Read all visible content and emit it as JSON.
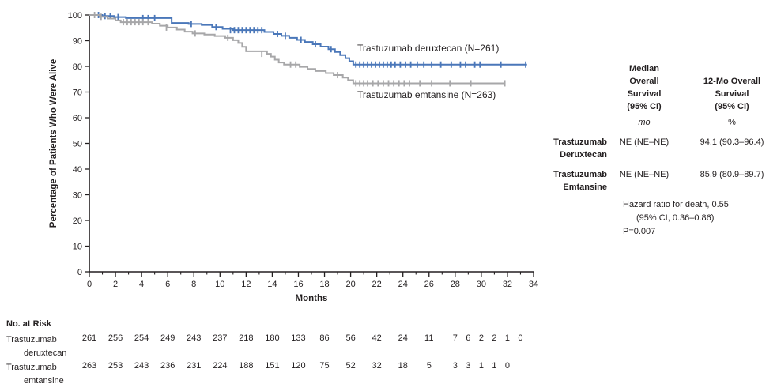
{
  "colors": {
    "deruxtecan_blue": "#4a77b9",
    "emtansine_gray": "#a7a7a9",
    "axis": "#231f20",
    "text": "#231f20",
    "background": "#ffffff"
  },
  "chart_data": {
    "type": "line",
    "subtype": "kaplan-meier-step",
    "title": "",
    "xlabel": "Months",
    "ylabel": "Percentage of Patients Who Were Alive",
    "xlim": [
      0,
      34
    ],
    "ylim": [
      0,
      100
    ],
    "x_major_ticks": [
      0,
      2,
      4,
      6,
      8,
      10,
      12,
      14,
      16,
      18,
      20,
      22,
      24,
      26,
      28,
      30,
      32,
      34
    ],
    "x_minor_ticks": [
      1,
      3,
      5,
      7,
      9,
      11,
      13,
      15,
      17,
      19,
      21,
      23,
      25,
      27,
      29,
      31,
      33
    ],
    "y_ticks": [
      0,
      10,
      20,
      30,
      40,
      50,
      60,
      70,
      80,
      90,
      100
    ],
    "grid": false,
    "legend_position": "inline-annotations",
    "series": [
      {
        "name": "Trastuzumab deruxtecan",
        "n": 261,
        "annotation": "Trastuzumab deruxtecan (N=261)",
        "color": "#4a77b9",
        "end_month": 33.5,
        "steps": [
          [
            0,
            100
          ],
          [
            1.0,
            99.6
          ],
          [
            1.9,
            99.2
          ],
          [
            2.8,
            98.8
          ],
          [
            6.3,
            96.9
          ],
          [
            7.6,
            96.5
          ],
          [
            8.6,
            96.1
          ],
          [
            9.4,
            95.3
          ],
          [
            10.2,
            94.6
          ],
          [
            11.0,
            94.1
          ],
          [
            13.4,
            93.4
          ],
          [
            14.1,
            92.6
          ],
          [
            14.7,
            91.9
          ],
          [
            15.3,
            91.1
          ],
          [
            15.9,
            90.3
          ],
          [
            16.5,
            89.5
          ],
          [
            17.1,
            88.6
          ],
          [
            17.7,
            87.7
          ],
          [
            18.3,
            86.7
          ],
          [
            18.8,
            85.6
          ],
          [
            19.2,
            84.4
          ],
          [
            19.6,
            83.2
          ],
          [
            19.9,
            82.0
          ],
          [
            20.2,
            80.7
          ]
        ],
        "censors": [
          [
            0.7,
            100
          ],
          [
            1.2,
            99.6
          ],
          [
            1.6,
            99.6
          ],
          [
            2.2,
            99.2
          ],
          [
            4.1,
            98.8
          ],
          [
            4.5,
            98.8
          ],
          [
            5.0,
            98.8
          ],
          [
            7.8,
            96.5
          ],
          [
            9.7,
            95.3
          ],
          [
            10.8,
            94.1
          ],
          [
            11.1,
            94.1
          ],
          [
            11.4,
            94.1
          ],
          [
            11.7,
            94.1
          ],
          [
            12.0,
            94.1
          ],
          [
            12.3,
            94.1
          ],
          [
            12.6,
            94.1
          ],
          [
            12.9,
            94.1
          ],
          [
            13.2,
            94.1
          ],
          [
            14.4,
            92.6
          ],
          [
            15.0,
            91.9
          ],
          [
            16.2,
            90.3
          ],
          [
            17.3,
            88.6
          ],
          [
            18.5,
            86.7
          ],
          [
            20.4,
            80.7
          ],
          [
            20.7,
            80.7
          ],
          [
            21.0,
            80.7
          ],
          [
            21.3,
            80.7
          ],
          [
            21.6,
            80.7
          ],
          [
            21.9,
            80.7
          ],
          [
            22.2,
            80.7
          ],
          [
            22.5,
            80.7
          ],
          [
            22.8,
            80.7
          ],
          [
            23.1,
            80.7
          ],
          [
            23.4,
            80.7
          ],
          [
            23.8,
            80.7
          ],
          [
            24.2,
            80.7
          ],
          [
            24.6,
            80.7
          ],
          [
            25.1,
            80.7
          ],
          [
            25.6,
            80.7
          ],
          [
            26.2,
            80.7
          ],
          [
            26.9,
            80.7
          ],
          [
            27.7,
            80.7
          ],
          [
            28.4,
            80.7
          ],
          [
            28.8,
            80.7
          ],
          [
            29.5,
            80.7
          ],
          [
            29.9,
            80.7
          ],
          [
            31.5,
            80.7
          ],
          [
            33.4,
            80.7
          ]
        ]
      },
      {
        "name": "Trastuzumab emtansine",
        "n": 263,
        "annotation": "Trastuzumab emtansine (N=263)",
        "color": "#a7a7a9",
        "end_month": 31.8,
        "steps": [
          [
            0,
            100
          ],
          [
            0.8,
            99.3
          ],
          [
            1.4,
            98.6
          ],
          [
            2.0,
            97.9
          ],
          [
            2.4,
            97.2
          ],
          [
            4.8,
            96.6
          ],
          [
            5.4,
            95.8
          ],
          [
            6.0,
            95.1
          ],
          [
            6.7,
            94.3
          ],
          [
            7.3,
            93.5
          ],
          [
            7.9,
            92.8
          ],
          [
            8.8,
            92.4
          ],
          [
            9.6,
            91.8
          ],
          [
            10.4,
            91.1
          ],
          [
            11.0,
            90.2
          ],
          [
            11.4,
            89.1
          ],
          [
            11.7,
            87.6
          ],
          [
            12.0,
            85.9
          ],
          [
            13.6,
            84.9
          ],
          [
            13.9,
            83.8
          ],
          [
            14.2,
            82.6
          ],
          [
            14.5,
            81.5
          ],
          [
            14.9,
            80.7
          ],
          [
            16.1,
            79.8
          ],
          [
            16.7,
            79.0
          ],
          [
            17.3,
            78.2
          ],
          [
            18.1,
            77.4
          ],
          [
            18.7,
            76.6
          ],
          [
            19.4,
            75.6
          ],
          [
            19.8,
            74.6
          ],
          [
            20.2,
            73.4
          ]
        ],
        "censors": [
          [
            0.4,
            100
          ],
          [
            0.9,
            99.3
          ],
          [
            2.6,
            97.2
          ],
          [
            2.9,
            97.2
          ],
          [
            3.2,
            97.2
          ],
          [
            3.5,
            97.2
          ],
          [
            3.8,
            97.2
          ],
          [
            4.1,
            97.2
          ],
          [
            4.5,
            97.2
          ],
          [
            5.9,
            95.1
          ],
          [
            8.1,
            92.8
          ],
          [
            10.6,
            91.1
          ],
          [
            13.2,
            84.9
          ],
          [
            15.4,
            80.7
          ],
          [
            15.8,
            80.7
          ],
          [
            19.0,
            76.6
          ],
          [
            20.4,
            73.4
          ],
          [
            20.7,
            73.4
          ],
          [
            21.0,
            73.4
          ],
          [
            21.3,
            73.4
          ],
          [
            21.7,
            73.4
          ],
          [
            22.1,
            73.4
          ],
          [
            22.5,
            73.4
          ],
          [
            22.9,
            73.4
          ],
          [
            23.3,
            73.4
          ],
          [
            23.7,
            73.4
          ],
          [
            24.1,
            73.4
          ],
          [
            24.5,
            73.4
          ],
          [
            25.3,
            73.4
          ],
          [
            26.2,
            73.4
          ],
          [
            27.6,
            73.4
          ],
          [
            29.2,
            73.4
          ],
          [
            31.8,
            73.4
          ]
        ]
      }
    ]
  },
  "stats_table": {
    "col1_header": "Median\nOverall\nSurvival\n(95% CI)",
    "col2_header": "12-Mo Overall\nSurvival\n(95% CI)",
    "col1_unit": "mo",
    "col2_unit": "%",
    "rows": [
      {
        "label": "Trastuzumab\nDeruxtecan",
        "median_os": "NE (NE–NE)",
        "os_12mo": "94.1 (90.3–96.4)"
      },
      {
        "label": "Trastuzumab\nEmtansine",
        "median_os": "NE (NE–NE)",
        "os_12mo": "85.9 (80.9–89.7)"
      }
    ]
  },
  "hazard": {
    "line1": "Hazard ratio for death, 0.55",
    "line2": "(95% CI, 0.36–0.86)",
    "line3": "P=0.007"
  },
  "risk_table": {
    "header": "No. at Risk",
    "rows": [
      {
        "label_line1": "Trastuzumab",
        "label_line2": "deruxtecan",
        "months": [
          0,
          2,
          4,
          6,
          8,
          10,
          12,
          14,
          16,
          18,
          20,
          22,
          24,
          26,
          28,
          29,
          30,
          31,
          32,
          33
        ],
        "values": [
          261,
          256,
          254,
          249,
          243,
          237,
          218,
          180,
          133,
          86,
          56,
          42,
          24,
          11,
          7,
          6,
          2,
          2,
          1,
          0
        ]
      },
      {
        "label_line1": "Trastuzumab",
        "label_line2": "emtansine",
        "months": [
          0,
          2,
          4,
          6,
          8,
          10,
          12,
          14,
          16,
          18,
          20,
          22,
          24,
          26,
          28,
          29,
          30,
          31,
          32
        ],
        "values": [
          263,
          253,
          243,
          236,
          231,
          224,
          188,
          151,
          120,
          75,
          52,
          32,
          18,
          5,
          3,
          3,
          1,
          1,
          0
        ]
      }
    ]
  }
}
